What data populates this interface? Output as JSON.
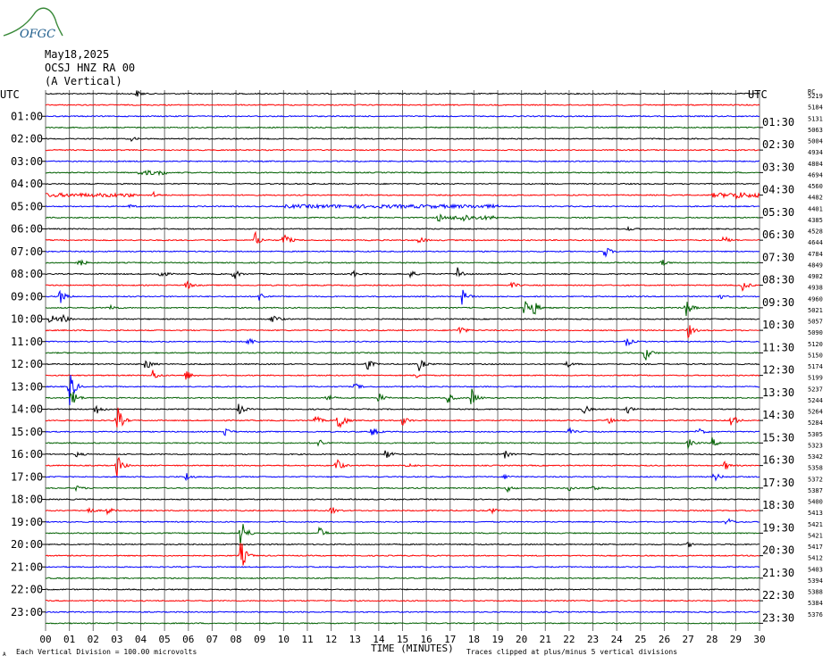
{
  "logo": {
    "text": "OFGC",
    "color": "#1a5a8a",
    "accent": "#3a8a3a"
  },
  "header": {
    "date": "May18,2025",
    "station": "OCSJ HNZ RA 00",
    "component": "(A Vertical)"
  },
  "footer": {
    "division_note": "Each Vertical Division =  100.00 microvolts",
    "clip_note": "Traces clipped at plus/minus 5 vertical divisions",
    "corner_mark": "A"
  },
  "colors": {
    "grid": "#707070",
    "traces": [
      "#000000",
      "#ff0000",
      "#0000ff",
      "#006000"
    ]
  },
  "chart_data": {
    "type": "helicorder",
    "xlabel": "TIME (MINUTES)",
    "x_ticks": [
      "00",
      "01",
      "02",
      "03",
      "04",
      "05",
      "06",
      "07",
      "08",
      "09",
      "10",
      "11",
      "12",
      "13",
      "14",
      "15",
      "16",
      "17",
      "18",
      "19",
      "20",
      "21",
      "22",
      "23",
      "24",
      "25",
      "26",
      "27",
      "28",
      "29",
      "30"
    ],
    "xlim": [
      0,
      30
    ],
    "left_axis_title": "UTC",
    "right_axis_title": "UTC",
    "right_corner_label": "RC",
    "left_labels": [
      "01:00",
      "02:00",
      "03:00",
      "04:00",
      "05:00",
      "06:00",
      "07:00",
      "08:00",
      "09:00",
      "10:00",
      "11:00",
      "12:00",
      "13:00",
      "14:00",
      "15:00",
      "16:00",
      "17:00",
      "18:00",
      "19:00",
      "20:00",
      "21:00",
      "22:00",
      "23:00"
    ],
    "right_labels": [
      "01:30",
      "02:30",
      "03:30",
      "04:30",
      "05:30",
      "06:30",
      "07:30",
      "08:30",
      "09:30",
      "10:30",
      "11:30",
      "12:30",
      "13:30",
      "14:30",
      "15:30",
      "16:30",
      "17:30",
      "18:30",
      "19:30",
      "20:30",
      "21:30",
      "22:30",
      "23:30"
    ],
    "rc_values": [
      "5219",
      "5184",
      "5131",
      "5063",
      "5004",
      "4934",
      "4804",
      "4694",
      "4560",
      "4482",
      "4401",
      "4385",
      "4528",
      "4644",
      "4784",
      "4849",
      "4902",
      "4938",
      "4960",
      "5021",
      "5057",
      "5090",
      "5120",
      "5150",
      "5174",
      "5199",
      "5237",
      "5244",
      "5264",
      "5284",
      "5305",
      "5323",
      "5342",
      "5358",
      "5372",
      "5387",
      "5400",
      "5413",
      "5421",
      "5421",
      "5417",
      "5412",
      "5403",
      "5394",
      "5388",
      "5384",
      "5376"
    ],
    "trace_count": 48,
    "events": [
      {
        "row": 0,
        "minute": 3.8,
        "amp": 0.6
      },
      {
        "row": 4,
        "minute": 3.6,
        "amp": 0.3
      },
      {
        "row": 9,
        "minute": 4.5,
        "amp": 0.5
      },
      {
        "row": 9,
        "minute": 29.0,
        "amp": 0.4
      },
      {
        "row": 10,
        "minute": 3.5,
        "amp": 0.3
      },
      {
        "row": 11,
        "minute": 16.5,
        "amp": 0.7
      },
      {
        "row": 11,
        "minute": 17.5,
        "amp": 0.6
      },
      {
        "row": 12,
        "minute": 24.5,
        "amp": 0.3
      },
      {
        "row": 13,
        "minute": 8.8,
        "amp": 1.3
      },
      {
        "row": 13,
        "minute": 10.0,
        "amp": 1.5
      },
      {
        "row": 13,
        "minute": 15.7,
        "amp": 0.6
      },
      {
        "row": 13,
        "minute": 28.5,
        "amp": 0.7
      },
      {
        "row": 14,
        "minute": 23.5,
        "amp": 1.0
      },
      {
        "row": 15,
        "minute": 1.4,
        "amp": 0.8
      },
      {
        "row": 15,
        "minute": 25.9,
        "amp": 0.5
      },
      {
        "row": 16,
        "minute": 4.8,
        "amp": 0.8
      },
      {
        "row": 16,
        "minute": 7.9,
        "amp": 0.9
      },
      {
        "row": 16,
        "minute": 12.9,
        "amp": 0.6
      },
      {
        "row": 16,
        "minute": 15.3,
        "amp": 0.7
      },
      {
        "row": 16,
        "minute": 17.3,
        "amp": 1.2
      },
      {
        "row": 17,
        "minute": 5.9,
        "amp": 0.8
      },
      {
        "row": 17,
        "minute": 19.6,
        "amp": 0.5
      },
      {
        "row": 17,
        "minute": 29.3,
        "amp": 0.9
      },
      {
        "row": 18,
        "minute": 0.6,
        "amp": 1.2
      },
      {
        "row": 18,
        "minute": 9.0,
        "amp": 0.8
      },
      {
        "row": 18,
        "minute": 17.5,
        "amp": 1.2
      },
      {
        "row": 18,
        "minute": 28.3,
        "amp": 0.4
      },
      {
        "row": 19,
        "minute": 2.7,
        "amp": 0.6
      },
      {
        "row": 19,
        "minute": 20.1,
        "amp": 2.2
      },
      {
        "row": 19,
        "minute": 20.5,
        "amp": 1.2
      },
      {
        "row": 19,
        "minute": 26.9,
        "amp": 1.6
      },
      {
        "row": 20,
        "minute": 0.2,
        "amp": 1.0
      },
      {
        "row": 20,
        "minute": 0.7,
        "amp": 0.9
      },
      {
        "row": 20,
        "minute": 9.5,
        "amp": 1.2
      },
      {
        "row": 21,
        "minute": 17.4,
        "amp": 0.8
      },
      {
        "row": 21,
        "minute": 27.0,
        "amp": 1.1
      },
      {
        "row": 22,
        "minute": 8.5,
        "amp": 0.8
      },
      {
        "row": 22,
        "minute": 24.4,
        "amp": 0.8
      },
      {
        "row": 23,
        "minute": 25.2,
        "amp": 1.3
      },
      {
        "row": 24,
        "minute": 4.2,
        "amp": 1.0
      },
      {
        "row": 24,
        "minute": 13.5,
        "amp": 1.0
      },
      {
        "row": 24,
        "minute": 15.7,
        "amp": 1.0
      },
      {
        "row": 24,
        "minute": 21.9,
        "amp": 0.5
      },
      {
        "row": 25,
        "minute": 4.5,
        "amp": 0.9
      },
      {
        "row": 25,
        "minute": 5.9,
        "amp": 0.9
      },
      {
        "row": 25,
        "minute": 15.5,
        "amp": 0.6
      },
      {
        "row": 26,
        "minute": 1.0,
        "amp": 3.0
      },
      {
        "row": 26,
        "minute": 13.0,
        "amp": 0.6
      },
      {
        "row": 27,
        "minute": 1.1,
        "amp": 1.6
      },
      {
        "row": 27,
        "minute": 11.8,
        "amp": 0.7
      },
      {
        "row": 27,
        "minute": 14.0,
        "amp": 0.8
      },
      {
        "row": 27,
        "minute": 16.9,
        "amp": 0.9
      },
      {
        "row": 27,
        "minute": 17.9,
        "amp": 1.5
      },
      {
        "row": 28,
        "minute": 2.1,
        "amp": 1.0
      },
      {
        "row": 28,
        "minute": 8.1,
        "amp": 1.0
      },
      {
        "row": 28,
        "minute": 22.6,
        "amp": 0.8
      },
      {
        "row": 28,
        "minute": 24.4,
        "amp": 0.8
      },
      {
        "row": 29,
        "minute": 3.0,
        "amp": 2.5
      },
      {
        "row": 29,
        "minute": 11.3,
        "amp": 1.0
      },
      {
        "row": 29,
        "minute": 12.3,
        "amp": 2.4
      },
      {
        "row": 29,
        "minute": 15.0,
        "amp": 0.8
      },
      {
        "row": 29,
        "minute": 23.6,
        "amp": 0.7
      },
      {
        "row": 29,
        "minute": 28.8,
        "amp": 1.4
      },
      {
        "row": 30,
        "minute": 7.5,
        "amp": 0.8
      },
      {
        "row": 30,
        "minute": 13.7,
        "amp": 0.8
      },
      {
        "row": 30,
        "minute": 22.0,
        "amp": 0.5
      },
      {
        "row": 30,
        "minute": 27.4,
        "amp": 0.7
      },
      {
        "row": 31,
        "minute": 11.5,
        "amp": 0.8
      },
      {
        "row": 31,
        "minute": 27.0,
        "amp": 0.7
      },
      {
        "row": 31,
        "minute": 28.0,
        "amp": 0.8
      },
      {
        "row": 32,
        "minute": 1.3,
        "amp": 0.4
      },
      {
        "row": 32,
        "minute": 14.3,
        "amp": 0.8
      },
      {
        "row": 32,
        "minute": 19.3,
        "amp": 0.6
      },
      {
        "row": 33,
        "minute": 3.0,
        "amp": 1.8
      },
      {
        "row": 33,
        "minute": 12.2,
        "amp": 1.4
      },
      {
        "row": 33,
        "minute": 15.2,
        "amp": 0.5
      },
      {
        "row": 33,
        "minute": 28.5,
        "amp": 0.8
      },
      {
        "row": 34,
        "minute": 5.9,
        "amp": 0.7
      },
      {
        "row": 34,
        "minute": 19.3,
        "amp": 0.4
      },
      {
        "row": 34,
        "minute": 28.1,
        "amp": 0.8
      },
      {
        "row": 35,
        "minute": 1.3,
        "amp": 0.4
      },
      {
        "row": 35,
        "minute": 19.4,
        "amp": 0.5
      },
      {
        "row": 35,
        "minute": 22.0,
        "amp": 0.4
      },
      {
        "row": 35,
        "minute": 23.0,
        "amp": 0.5
      },
      {
        "row": 37,
        "minute": 1.8,
        "amp": 0.6
      },
      {
        "row": 37,
        "minute": 2.6,
        "amp": 0.6
      },
      {
        "row": 37,
        "minute": 12.0,
        "amp": 0.7
      },
      {
        "row": 37,
        "minute": 18.7,
        "amp": 0.5
      },
      {
        "row": 38,
        "minute": 28.6,
        "amp": 0.9
      },
      {
        "row": 39,
        "minute": 8.2,
        "amp": 3.0
      },
      {
        "row": 39,
        "minute": 11.5,
        "amp": 1.0
      },
      {
        "row": 40,
        "minute": 27.0,
        "amp": 0.4
      },
      {
        "row": 41,
        "minute": 8.2,
        "amp": 2.5
      }
    ],
    "bursts": [
      {
        "row": 7,
        "start": 3.9,
        "end": 5.1,
        "amp": 0.25
      },
      {
        "row": 9,
        "start": 0.0,
        "end": 3.8,
        "amp": 0.2
      },
      {
        "row": 9,
        "start": 28.0,
        "end": 30.0,
        "amp": 0.25
      },
      {
        "row": 10,
        "start": 10.0,
        "end": 19.0,
        "amp": 0.18
      },
      {
        "row": 11,
        "start": 17.0,
        "end": 19.0,
        "amp": 0.2
      }
    ]
  }
}
